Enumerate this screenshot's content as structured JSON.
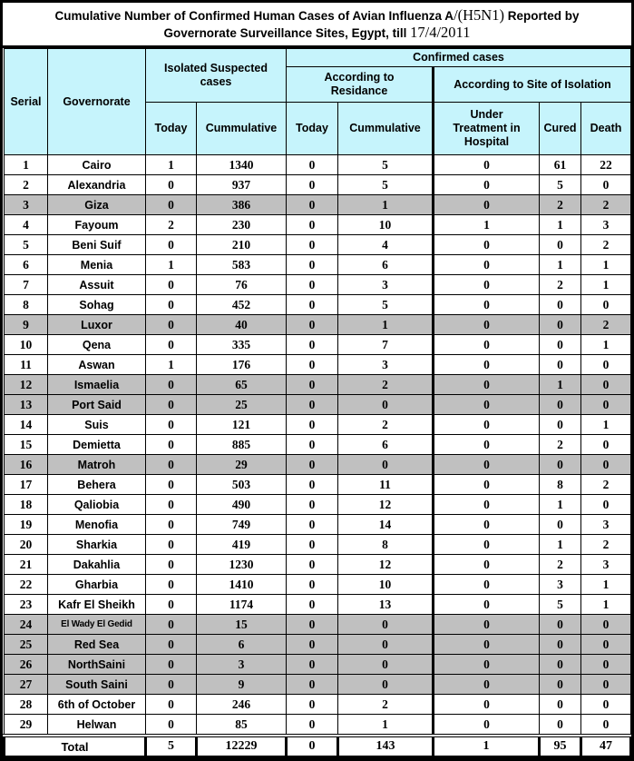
{
  "title": {
    "line1": [
      "Cumulative Number of Confirmed Human Cases of Avian Influenza A",
      "/(H5N1)",
      " Reported by"
    ],
    "line2": [
      "Governorate Surveillance Sites, Egypt, till ",
      "17/4/2011"
    ]
  },
  "colors": {
    "header_bg": "#c6f4fc",
    "shaded_row_bg": "#c0c0c0",
    "border": "#000000",
    "text": "#000000"
  },
  "table": {
    "header": {
      "serial": "Serial",
      "governorate": "Governorate",
      "isolated_suspected": "Isolated Suspected cases",
      "confirmed": "Confirmed cases",
      "residence": "According to Residance",
      "site_of_isolation": "According to Site of Isolation",
      "today_isolated": "Today",
      "cumulative_isolated": "Cummulative",
      "today_residence": "Today",
      "cumulative_residence": "Cummulative",
      "hospital": "Under Treatment in Hospital",
      "cured": "Cured",
      "death": "Death"
    },
    "rows": [
      {
        "serial": 1,
        "governorate": "Cairo",
        "values": [
          1,
          1340,
          0,
          5,
          0,
          61,
          22
        ],
        "shaded": false
      },
      {
        "serial": 2,
        "governorate": "Alexandria",
        "values": [
          0,
          937,
          0,
          5,
          0,
          5,
          0
        ],
        "shaded": false
      },
      {
        "serial": 3,
        "governorate": "Giza",
        "values": [
          0,
          386,
          0,
          1,
          0,
          2,
          2
        ],
        "shaded": true
      },
      {
        "serial": 4,
        "governorate": "Fayoum",
        "values": [
          2,
          230,
          0,
          10,
          1,
          1,
          3
        ],
        "shaded": false
      },
      {
        "serial": 5,
        "governorate": "Beni Suif",
        "values": [
          0,
          210,
          0,
          4,
          0,
          0,
          2
        ],
        "shaded": false
      },
      {
        "serial": 6,
        "governorate": "Menia",
        "values": [
          1,
          583,
          0,
          6,
          0,
          1,
          1
        ],
        "shaded": false
      },
      {
        "serial": 7,
        "governorate": "Assuit",
        "values": [
          0,
          76,
          0,
          3,
          0,
          2,
          1
        ],
        "shaded": false
      },
      {
        "serial": 8,
        "governorate": "Sohag",
        "values": [
          0,
          452,
          0,
          5,
          0,
          0,
          0
        ],
        "shaded": false
      },
      {
        "serial": 9,
        "governorate": "Luxor",
        "values": [
          0,
          40,
          0,
          1,
          0,
          0,
          2
        ],
        "shaded": true
      },
      {
        "serial": 10,
        "governorate": "Qena",
        "values": [
          0,
          335,
          0,
          7,
          0,
          0,
          1
        ],
        "shaded": false
      },
      {
        "serial": 11,
        "governorate": "Aswan",
        "values": [
          1,
          176,
          0,
          3,
          0,
          0,
          0
        ],
        "shaded": false
      },
      {
        "serial": 12,
        "governorate": "Ismaelia",
        "values": [
          0,
          65,
          0,
          2,
          0,
          1,
          0
        ],
        "shaded": true
      },
      {
        "serial": 13,
        "governorate": "Port Said",
        "values": [
          0,
          25,
          0,
          0,
          0,
          0,
          0
        ],
        "shaded": true
      },
      {
        "serial": 14,
        "governorate": "Suis",
        "values": [
          0,
          121,
          0,
          2,
          0,
          0,
          1
        ],
        "shaded": false
      },
      {
        "serial": 15,
        "governorate": "Demietta",
        "values": [
          0,
          885,
          0,
          6,
          0,
          2,
          0
        ],
        "shaded": false
      },
      {
        "serial": 16,
        "governorate": "Matroh",
        "values": [
          0,
          29,
          0,
          0,
          0,
          0,
          0
        ],
        "shaded": true
      },
      {
        "serial": 17,
        "governorate": "Behera",
        "values": [
          0,
          503,
          0,
          11,
          0,
          8,
          2
        ],
        "shaded": false
      },
      {
        "serial": 18,
        "governorate": "Qaliobia",
        "values": [
          0,
          490,
          0,
          12,
          0,
          1,
          0
        ],
        "shaded": false
      },
      {
        "serial": 19,
        "governorate": "Menofia",
        "values": [
          0,
          749,
          0,
          14,
          0,
          0,
          3
        ],
        "shaded": false
      },
      {
        "serial": 20,
        "governorate": "Sharkia",
        "values": [
          0,
          419,
          0,
          8,
          0,
          1,
          2
        ],
        "shaded": false
      },
      {
        "serial": 21,
        "governorate": "Dakahlia",
        "values": [
          0,
          1230,
          0,
          12,
          0,
          2,
          3
        ],
        "shaded": false
      },
      {
        "serial": 22,
        "governorate": "Gharbia",
        "values": [
          0,
          1410,
          0,
          10,
          0,
          3,
          1
        ],
        "shaded": false
      },
      {
        "serial": 23,
        "governorate": "Kafr El Sheikh",
        "values": [
          0,
          1174,
          0,
          13,
          0,
          5,
          1
        ],
        "shaded": false
      },
      {
        "serial": 24,
        "governorate": "El Wady El Gedid",
        "values": [
          0,
          15,
          0,
          0,
          0,
          0,
          0
        ],
        "shaded": true
      },
      {
        "serial": 25,
        "governorate": "Red Sea",
        "values": [
          0,
          6,
          0,
          0,
          0,
          0,
          0
        ],
        "shaded": true
      },
      {
        "serial": 26,
        "governorate": "NorthSaini",
        "values": [
          0,
          3,
          0,
          0,
          0,
          0,
          0
        ],
        "shaded": true
      },
      {
        "serial": 27,
        "governorate": "South Saini",
        "values": [
          0,
          9,
          0,
          0,
          0,
          0,
          0
        ],
        "shaded": true
      },
      {
        "serial": 28,
        "governorate": "6th of October",
        "values": [
          0,
          246,
          0,
          2,
          0,
          0,
          0
        ],
        "shaded": false
      },
      {
        "serial": 29,
        "governorate": "Helwan",
        "values": [
          0,
          85,
          0,
          1,
          0,
          0,
          0
        ],
        "shaded": false
      }
    ],
    "total": {
      "label": "Total",
      "values": [
        5,
        12229,
        0,
        143,
        1,
        95,
        47
      ]
    }
  }
}
